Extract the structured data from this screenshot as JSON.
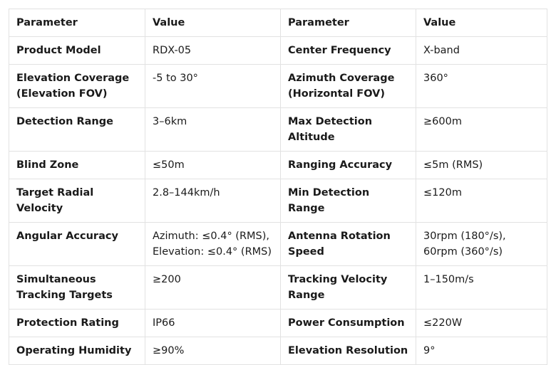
{
  "table": {
    "header": [
      "Parameter",
      "Value",
      "Parameter",
      "Value"
    ],
    "rows": [
      [
        "Product Model",
        "RDX-05",
        "Center Frequency",
        "X-band"
      ],
      [
        "Elevation Coverage\n(Elevation FOV)",
        "-5 to 30°",
        "Azimuth Coverage\n(Horizontal FOV)",
        "360°"
      ],
      [
        "Detection Range",
        "3–6km",
        "Max Detection\nAltitude",
        "≥600m"
      ],
      [
        "Blind Zone",
        "≤50m",
        "Ranging Accuracy",
        "≤5m (RMS)"
      ],
      [
        "Target Radial Velocity",
        "2.8–144km/h",
        "Min Detection Range",
        "≤120m"
      ],
      [
        "Angular Accuracy",
        "Azimuth: ≤0.4° (RMS),\nElevation: ≤0.4° (RMS)",
        "Antenna Rotation\nSpeed",
        "30rpm (180°/s),\n60rpm (360°/s)"
      ],
      [
        "Simultaneous\nTracking Targets",
        "≥200",
        "Tracking Velocity\nRange",
        "1–150m/s"
      ],
      [
        "Protection Rating",
        "IP66",
        "Power Consumption",
        "≤220W"
      ],
      [
        "Operating Humidity",
        "≥90%",
        "Elevation Resolution",
        "9°"
      ]
    ]
  }
}
